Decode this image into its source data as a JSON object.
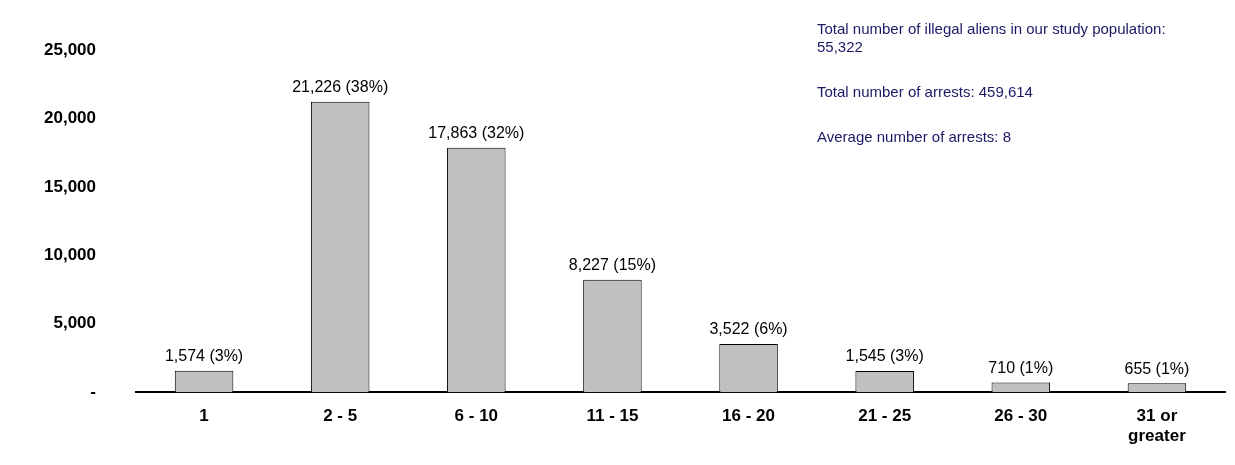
{
  "chart_data": {
    "type": "bar",
    "categories": [
      "1",
      "2 - 5",
      "6 - 10",
      "11 - 15",
      "16 - 20",
      "21 - 25",
      "26 - 30",
      "31 or greater"
    ],
    "values": [
      1574,
      21226,
      17863,
      8227,
      3522,
      1545,
      710,
      655
    ],
    "value_labels": [
      "1,574 (3%)",
      "21,226 (38%)",
      "17,863 (32%)",
      "8,227 (15%)",
      "3,522 (6%)",
      "1,545 (3%)",
      "710 (1%)",
      "655 (1%)"
    ],
    "color": "#c0c0c0",
    "ylim": [
      0,
      25000
    ],
    "yticks": [
      {
        "value": 0,
        "label": "-"
      },
      {
        "value": 5000,
        "label": "5,000"
      },
      {
        "value": 10000,
        "label": "10,000"
      },
      {
        "value": 15000,
        "label": "15,000"
      },
      {
        "value": 20000,
        "label": "20,000"
      },
      {
        "value": 25000,
        "label": "25,000"
      }
    ],
    "grid": false,
    "legend": false,
    "annotations": [
      "Total number of illegal aliens in our study population: 55,322",
      "Total number of arrests: 459,614",
      "Average number of arrests: 8"
    ]
  }
}
